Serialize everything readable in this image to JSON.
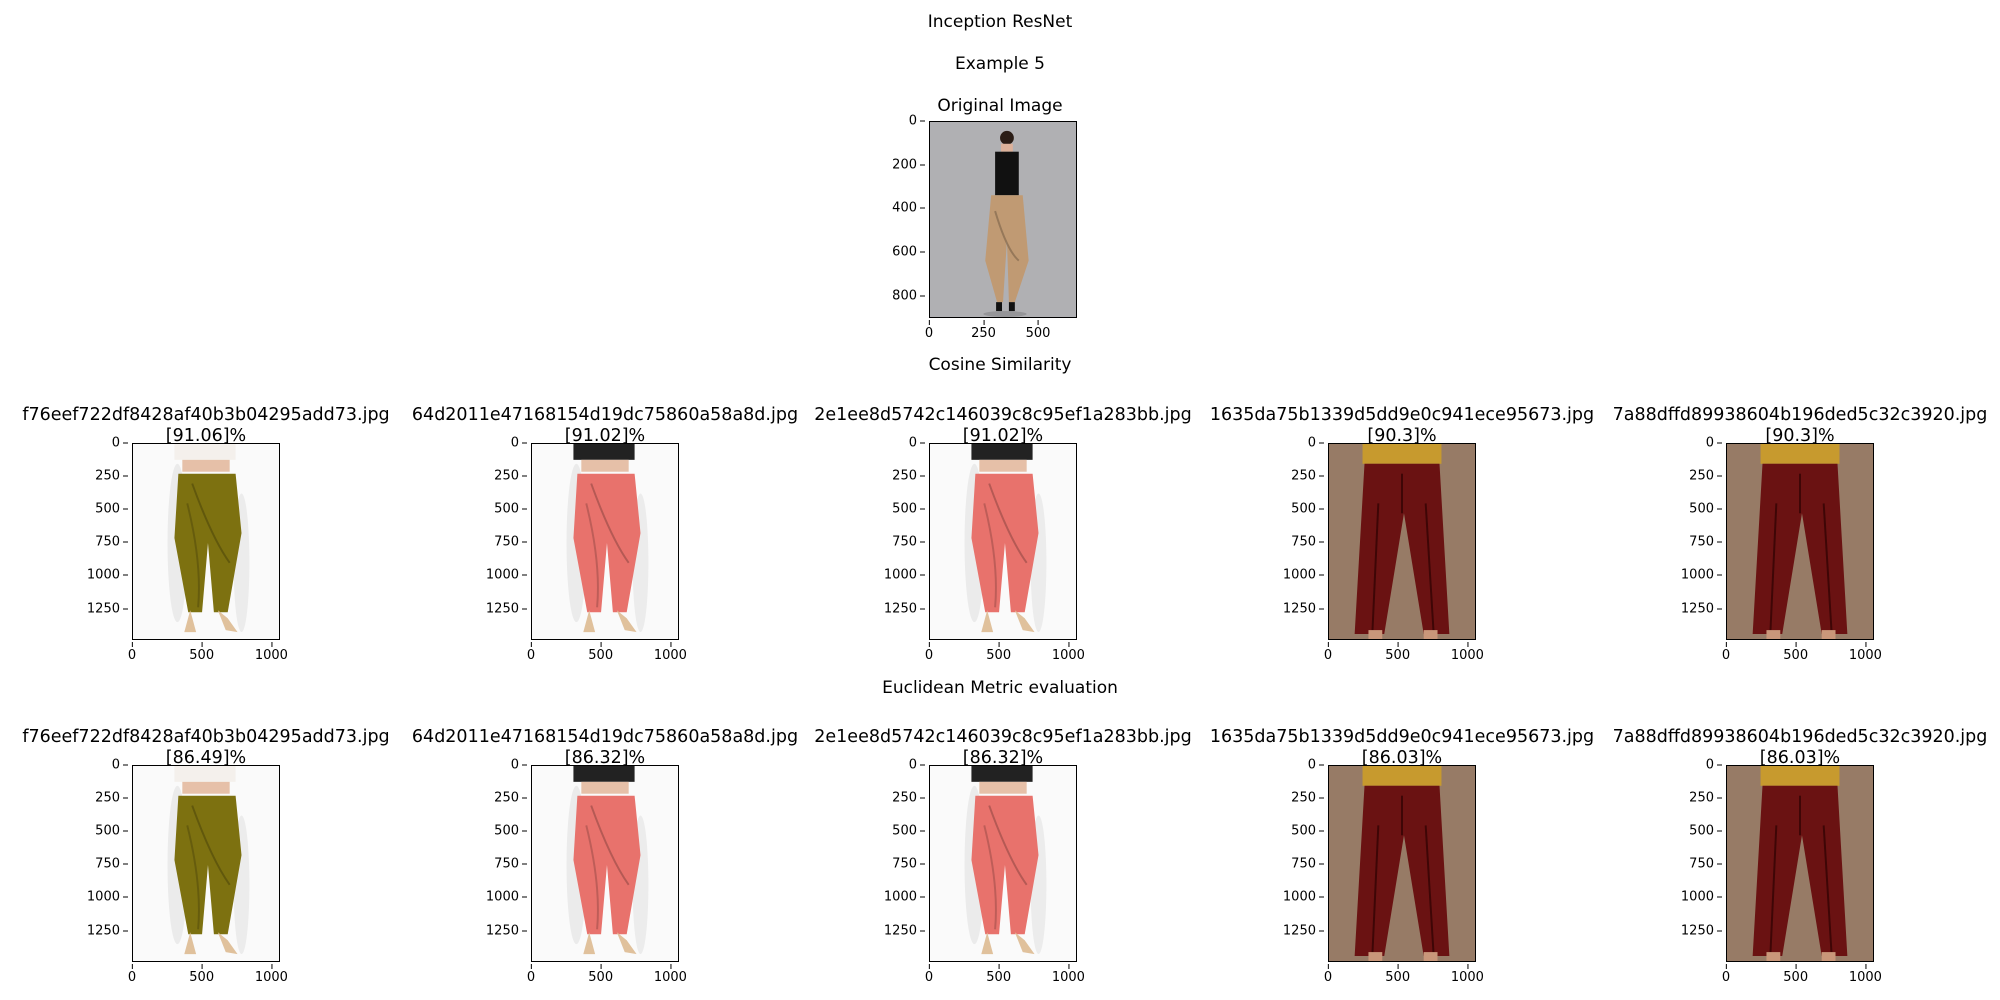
{
  "figure": {
    "title": "Inception ResNet",
    "example_label": "Example 5",
    "original_title": "Original Image",
    "cosine_section": "Cosine Similarity",
    "euclidean_section": "Euclidean Metric evaluation"
  },
  "original": {
    "yticks": [
      "0",
      "200",
      "400",
      "600",
      "800"
    ],
    "xticks": [
      "0",
      "250",
      "500"
    ]
  },
  "result_axes": {
    "yticks": [
      "0",
      "250",
      "500",
      "750",
      "1000",
      "1250"
    ],
    "xticks": [
      "0",
      "500",
      "1000"
    ]
  },
  "cosine": [
    {
      "file": "f76eef722df8428af40b3b04295add73.jpg",
      "score": "[91.06]%",
      "style": "olive-dhoti"
    },
    {
      "file": "64d2011e47168154d19dc75860a58a8d.jpg",
      "score": "[91.02]%",
      "style": "pink-dhoti"
    },
    {
      "file": "2e1ee8d5742c146039c8c95ef1a283bb.jpg",
      "score": "[91.02]%",
      "style": "pink-dhoti"
    },
    {
      "file": "1635da75b1339d5dd9e0c941ece95673.jpg",
      "score": "[90.3]%",
      "style": "maroon-palazzo"
    },
    {
      "file": "7a88dffd89938604b196ded5c32c3920.jpg",
      "score": "[90.3]%",
      "style": "maroon-palazzo"
    }
  ],
  "euclidean": [
    {
      "file": "f76eef722df8428af40b3b04295add73.jpg",
      "score": "[86.49]%",
      "style": "olive-dhoti"
    },
    {
      "file": "64d2011e47168154d19dc75860a58a8d.jpg",
      "score": "[86.32]%",
      "style": "pink-dhoti"
    },
    {
      "file": "2e1ee8d5742c146039c8c95ef1a283bb.jpg",
      "score": "[86.32]%",
      "style": "pink-dhoti"
    },
    {
      "file": "1635da75b1339d5dd9e0c941ece95673.jpg",
      "score": "[86.03]%",
      "style": "maroon-palazzo"
    },
    {
      "file": "7a88dffd89938604b196ded5c32c3920.jpg",
      "score": "[86.03]%",
      "style": "maroon-palazzo"
    }
  ],
  "colors": {
    "olive": "#7d7110",
    "pink": "#e8726c",
    "maroon": "#6a1212",
    "mustard": "#c79a2e",
    "tan_bg": "#a78a74",
    "gray_bg": "#a5a6a9",
    "khaki": "#c09a73"
  }
}
